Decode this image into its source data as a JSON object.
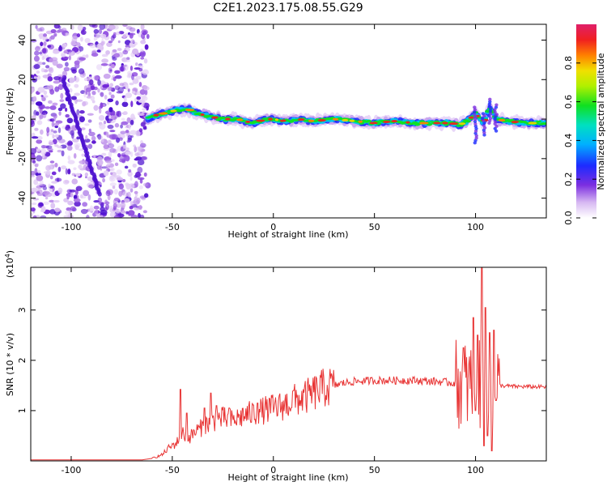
{
  "title": "C2E1.2023.175.08.55.G29",
  "chart_data": [
    {
      "type": "heatmap",
      "name": "spectrogram",
      "xlabel": "Height of straight line (km)",
      "ylabel": "Frequency (Hz)",
      "xlim": [
        -120,
        135
      ],
      "ylim": [
        -50,
        48
      ],
      "xticks": [
        -100,
        -50,
        0,
        50,
        100
      ],
      "yticks": [
        -40,
        -20,
        0,
        20,
        40
      ],
      "noise_region": [
        -120,
        -62
      ],
      "signal_track": [
        [
          -62,
          0
        ],
        [
          -58,
          2
        ],
        [
          -54,
          3
        ],
        [
          -50,
          4
        ],
        [
          -46,
          5
        ],
        [
          -42,
          5
        ],
        [
          -38,
          3
        ],
        [
          -34,
          2
        ],
        [
          -30,
          1
        ],
        [
          -24,
          0
        ],
        [
          -18,
          0
        ],
        [
          -10,
          -2
        ],
        [
          -4,
          0
        ],
        [
          0,
          0
        ],
        [
          6,
          -1
        ],
        [
          12,
          0
        ],
        [
          20,
          -1
        ],
        [
          30,
          0
        ],
        [
          40,
          -1
        ],
        [
          50,
          -2
        ],
        [
          60,
          -1
        ],
        [
          70,
          -2
        ],
        [
          80,
          -2
        ],
        [
          88,
          -2
        ],
        [
          92,
          -3
        ],
        [
          96,
          -1
        ],
        [
          100,
          3
        ],
        [
          104,
          -2
        ],
        [
          107,
          6
        ],
        [
          110,
          0
        ],
        [
          115,
          -1
        ],
        [
          125,
          -2
        ],
        [
          135,
          -2
        ]
      ],
      "colorbar": {
        "label": "Normalized spectral amplitude",
        "range": [
          0.0,
          1.0
        ],
        "ticks": [
          0.0,
          0.2,
          0.4,
          0.6,
          0.8
        ],
        "tick_labels": [
          "0.0",
          "0.2",
          "0.4",
          "0.6",
          "0.8"
        ]
      }
    },
    {
      "type": "line",
      "name": "snr",
      "xlabel": "Height of straight line (km)",
      "ylabel": "SNR (10 * v/v)",
      "y_multiplier": "(x10",
      "y_multiplier_exp": "4",
      "y_multiplier_close": ")",
      "xlim": [
        -120,
        135
      ],
      "ylim": [
        0,
        3.85
      ],
      "xticks": [
        -100,
        -50,
        0,
        50,
        100
      ],
      "yticks": [
        1,
        2,
        3
      ],
      "color": "#e83434",
      "envelope": [
        [
          -120,
          0.02
        ],
        [
          -65,
          0.02
        ],
        [
          -60,
          0.05
        ],
        [
          -55,
          0.12
        ],
        [
          -52,
          0.25
        ],
        [
          -48,
          0.35
        ],
        [
          -45,
          0.55
        ],
        [
          -42,
          0.45
        ],
        [
          -38,
          0.6
        ],
        [
          -34,
          0.7
        ],
        [
          -30,
          0.8
        ],
        [
          -25,
          0.85
        ],
        [
          -20,
          0.8
        ],
        [
          -15,
          0.9
        ],
        [
          -10,
          0.95
        ],
        [
          -5,
          1.0
        ],
        [
          0,
          1.05
        ],
        [
          5,
          1.1
        ],
        [
          10,
          1.2
        ],
        [
          15,
          1.25
        ],
        [
          20,
          1.35
        ],
        [
          25,
          1.45
        ],
        [
          30,
          1.5
        ],
        [
          35,
          1.55
        ],
        [
          40,
          1.58
        ],
        [
          50,
          1.6
        ],
        [
          60,
          1.6
        ],
        [
          70,
          1.6
        ],
        [
          80,
          1.58
        ],
        [
          90,
          1.55
        ],
        [
          96,
          1.5
        ],
        [
          100,
          1.5
        ],
        [
          110,
          1.5
        ],
        [
          120,
          1.48
        ],
        [
          135,
          1.47
        ]
      ],
      "spikes": [
        [
          -46,
          1.42
        ],
        [
          -43,
          0.95
        ],
        [
          -34,
          1.05
        ],
        [
          -31,
          1.35
        ],
        [
          -28,
          1.1
        ],
        [
          -22,
          1.05
        ],
        [
          -8,
          1.15
        ],
        [
          10,
          1.4
        ],
        [
          94,
          2.25
        ],
        [
          99,
          2.85
        ],
        [
          100,
          1.0
        ],
        [
          101,
          2.5
        ],
        [
          103,
          3.85
        ],
        [
          104,
          0.3
        ],
        [
          105,
          3.05
        ],
        [
          106,
          0.5
        ],
        [
          107,
          2.55
        ],
        [
          108,
          0.2
        ],
        [
          109,
          2.6
        ],
        [
          110,
          1.2
        ]
      ]
    }
  ]
}
